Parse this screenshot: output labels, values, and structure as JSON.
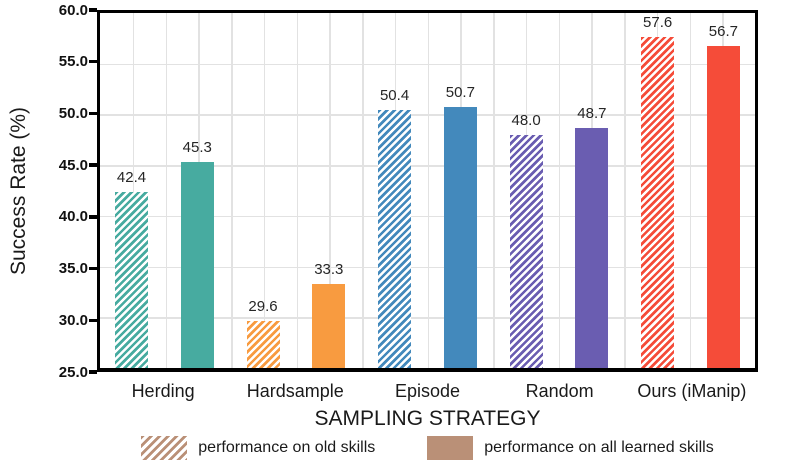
{
  "chart_data": {
    "type": "bar",
    "title": "",
    "xlabel": "SAMPLING STRATEGY",
    "ylabel": "Success Rate (%)",
    "ylim": [
      25.0,
      60.0
    ],
    "ytick_step": 5.0,
    "value_label_decimals": 1,
    "categories": [
      "Herding",
      "Hardsample",
      "Episode",
      "Random",
      "Ours (iManip)"
    ],
    "series": [
      {
        "name": "performance on old skills",
        "style": "hatched",
        "values": [
          42.4,
          29.6,
          50.4,
          48.0,
          57.6
        ]
      },
      {
        "name": "performance on all learned skills",
        "style": "solid",
        "values": [
          45.3,
          33.3,
          50.7,
          48.7,
          56.7
        ]
      }
    ],
    "category_colors": [
      "#47ABA0",
      "#F89B40",
      "#4389BC",
      "#6A5DB1",
      "#F54C39"
    ],
    "grid": {
      "horizontal": true,
      "vertical": true,
      "color": "#E2E2E2"
    },
    "frame_color": "#000000",
    "label_color": "#1A1A1A",
    "legend": {
      "position": "bottom",
      "swatch_color": "#BA9077",
      "items": [
        {
          "label": "performance on old skills",
          "style": "hatched"
        },
        {
          "label": "performance on all learned skills",
          "style": "solid"
        }
      ]
    }
  }
}
